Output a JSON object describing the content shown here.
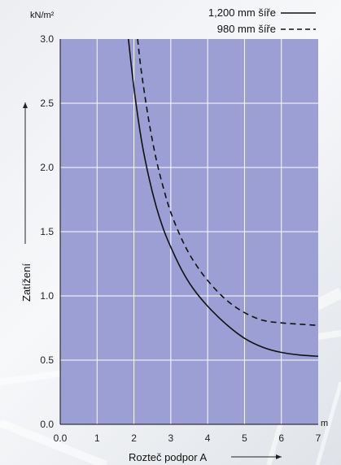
{
  "chart_data": {
    "type": "line",
    "title": "",
    "xlabel": "Rozteč podpor A",
    "ylabel": "Zatížení",
    "x_unit": "m",
    "y_unit": "kN/m²",
    "xlim": [
      0,
      7
    ],
    "ylim": [
      0,
      3
    ],
    "x_ticks": [
      "0.0",
      "1",
      "2",
      "3",
      "4",
      "5",
      "6",
      "7"
    ],
    "y_ticks": [
      "0.0",
      "0.5",
      "1.0",
      "1.5",
      "2.0",
      "2.5",
      "3.0"
    ],
    "grid": true,
    "legend_position": "top-right",
    "plot_background": "#9b9fd3",
    "grid_color": "#ffffff",
    "line_color": "#111111",
    "series": [
      {
        "name": "1,200 mm šíře",
        "style": "solid",
        "x": [
          1.85,
          2.0,
          2.2,
          2.4,
          2.6,
          2.8,
          3.0,
          3.3,
          3.6,
          4.0,
          4.5,
          5.0,
          5.5,
          6.0,
          6.5,
          7.0
        ],
        "y": [
          3.0,
          2.62,
          2.22,
          1.93,
          1.7,
          1.52,
          1.38,
          1.2,
          1.06,
          0.92,
          0.78,
          0.67,
          0.6,
          0.56,
          0.54,
          0.53
        ]
      },
      {
        "name": "980 mm šíře",
        "style": "dashed",
        "x": [
          2.1,
          2.2,
          2.4,
          2.6,
          2.8,
          3.0,
          3.3,
          3.6,
          4.0,
          4.5,
          5.0,
          5.5,
          6.0,
          6.5,
          7.0
        ],
        "y": [
          3.0,
          2.75,
          2.37,
          2.07,
          1.84,
          1.65,
          1.44,
          1.28,
          1.12,
          0.97,
          0.87,
          0.81,
          0.79,
          0.78,
          0.77
        ]
      }
    ]
  }
}
